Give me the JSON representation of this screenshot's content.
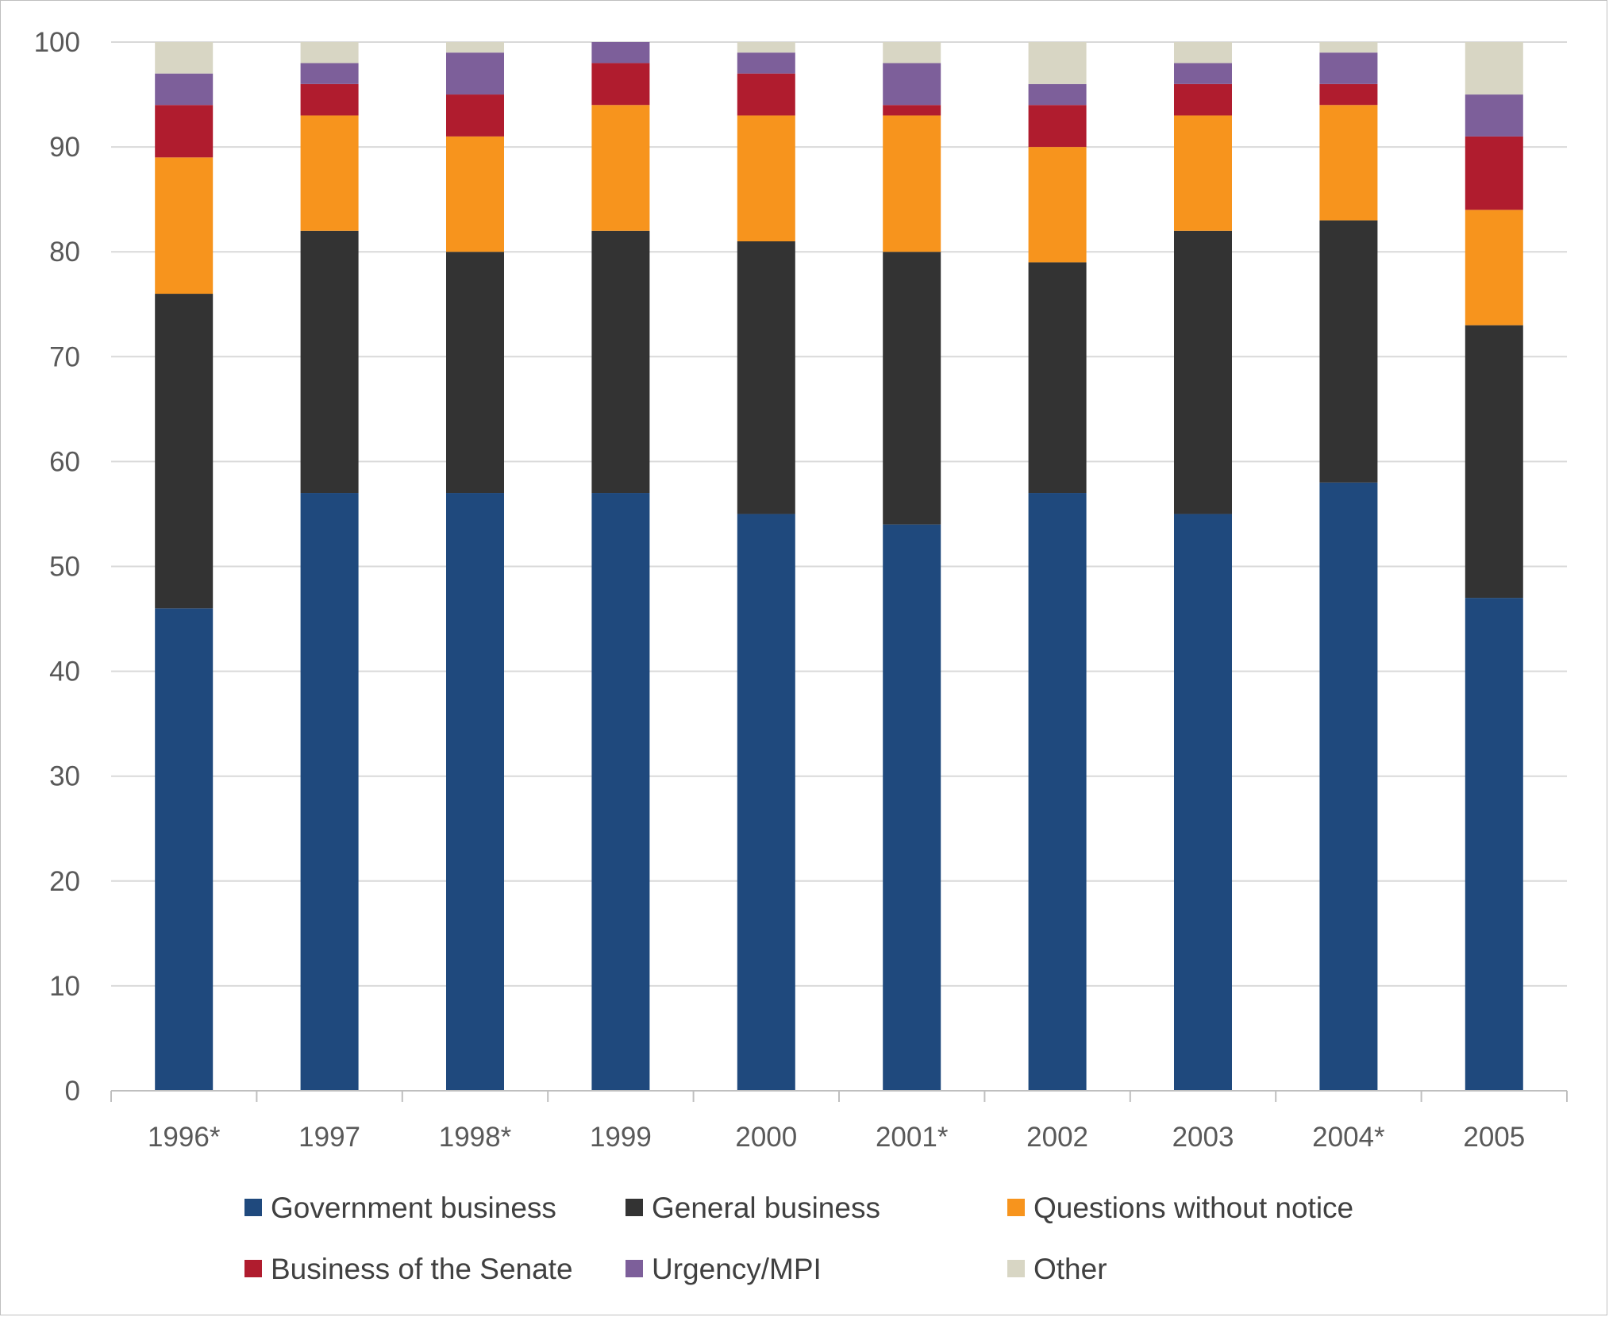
{
  "chart_data": {
    "type": "bar",
    "stacked": true,
    "title": "",
    "xlabel": "",
    "ylabel": "",
    "ylim": [
      0,
      100
    ],
    "yticks": [
      0,
      10,
      20,
      30,
      40,
      50,
      60,
      70,
      80,
      90,
      100
    ],
    "grid": true,
    "legend_position": "bottom",
    "categories": [
      "1996*",
      "1997",
      "1998*",
      "1999",
      "2000",
      "2001*",
      "2002",
      "2003",
      "2004*",
      "2005"
    ],
    "series": [
      {
        "name": "Government business",
        "color": "#1f497d",
        "values": [
          46,
          57,
          57,
          57,
          55,
          54,
          57,
          55,
          58,
          47
        ]
      },
      {
        "name": "General business",
        "color": "#333333",
        "values": [
          30,
          25,
          23,
          25,
          26,
          26,
          22,
          27,
          25,
          26
        ]
      },
      {
        "name": "Questions without notice",
        "color": "#f7941d",
        "values": [
          13,
          11,
          11,
          12,
          12,
          13,
          11,
          11,
          11,
          11
        ]
      },
      {
        "name": "Business of the Senate",
        "color": "#b01c2e",
        "values": [
          5,
          3,
          4,
          4,
          4,
          1,
          4,
          3,
          2,
          7
        ]
      },
      {
        "name": "Urgency/MPI",
        "color": "#7d5f9a",
        "values": [
          3,
          2,
          4,
          2,
          2,
          4,
          2,
          2,
          3,
          4
        ]
      },
      {
        "name": "Other",
        "color": "#d8d6c4",
        "values": [
          3,
          2,
          1,
          0,
          1,
          2,
          4,
          2,
          1,
          5
        ]
      }
    ]
  }
}
